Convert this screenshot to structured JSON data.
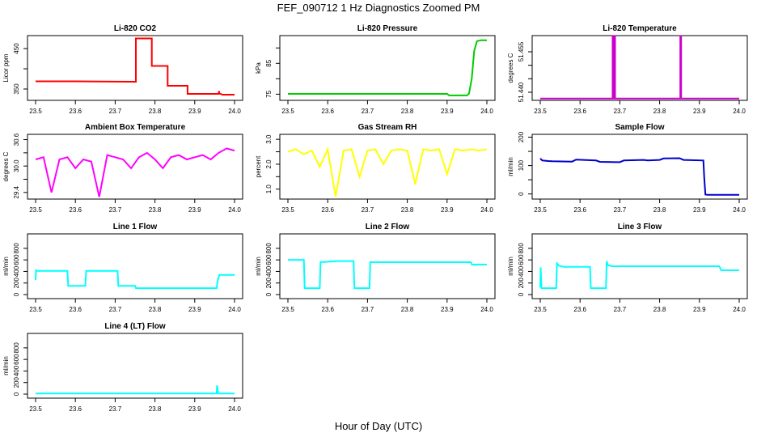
{
  "figure": {
    "title": "FEF_090712  1 Hz Diagnostics Zoomed PM",
    "xlabel": "Hour of Day (UTC)"
  },
  "chart_data": [
    {
      "type": "line",
      "title": "Li-820 CO2",
      "ylabel": "Licor ppm",
      "color": "#ff0000",
      "xlim": [
        23.5,
        24.0
      ],
      "ylim": [
        322,
        482
      ],
      "xticks": [
        "23.5",
        "23.6",
        "23.7",
        "23.8",
        "23.9",
        "24.0"
      ],
      "yticks": [
        {
          "v": 350,
          "label": "350"
        },
        {
          "v": 400,
          "label": ""
        },
        {
          "v": 450,
          "label": "450"
        }
      ],
      "x": [
        23.5,
        23.6,
        23.75,
        23.752,
        23.752,
        23.79,
        23.792,
        23.792,
        23.83,
        23.832,
        23.832,
        23.88,
        23.882,
        23.882,
        23.96,
        23.961,
        23.962,
        23.97,
        24.0
      ],
      "y": [
        369,
        369,
        368,
        368,
        475,
        475,
        475,
        407,
        407,
        407,
        358,
        358,
        358,
        338,
        338,
        345,
        339,
        336,
        336
      ]
    },
    {
      "type": "line",
      "title": "Li-820 Pressure",
      "ylabel": "kPa",
      "color": "#00cc00",
      "xlim": [
        23.5,
        24.0
      ],
      "ylim": [
        73,
        94
      ],
      "xticks": [
        "23.5",
        "23.6",
        "23.7",
        "23.8",
        "23.9",
        "24.0"
      ],
      "yticks": [
        {
          "v": 75,
          "label": "75"
        },
        {
          "v": 80,
          "label": ""
        },
        {
          "v": 85,
          "label": "85"
        },
        {
          "v": 90,
          "label": ""
        }
      ],
      "x": [
        23.5,
        23.9,
        23.905,
        23.95,
        23.955,
        23.962,
        23.968,
        23.975,
        23.985,
        24.0
      ],
      "y": [
        75.1,
        75.1,
        74.6,
        74.6,
        75.2,
        80,
        89,
        92.2,
        92.5,
        92.5
      ]
    },
    {
      "type": "line",
      "title": "Li-820 Temperature",
      "ylabel": "degrees C",
      "color": "#cc00cc",
      "xlim": [
        23.5,
        24.0
      ],
      "ylim": [
        51.437,
        51.461
      ],
      "xticks": [
        "23.5",
        "23.6",
        "23.7",
        "23.8",
        "23.9",
        "24.0"
      ],
      "yticks": [
        {
          "v": 51.44,
          "label": "51.440"
        },
        {
          "v": 51.445,
          "label": ""
        },
        {
          "v": 51.45,
          "label": ""
        },
        {
          "v": 51.455,
          "label": "51.455"
        }
      ],
      "x": [
        23.5,
        23.682,
        23.682,
        23.684,
        23.684,
        23.686,
        23.686,
        23.688,
        23.688,
        23.852,
        23.852,
        23.854,
        23.854,
        24.0
      ],
      "y": [
        51.4377,
        51.4377,
        51.4608,
        51.4608,
        51.4377,
        51.4377,
        51.4608,
        51.4608,
        51.4377,
        51.4377,
        51.4608,
        51.4608,
        51.4377,
        51.4377
      ]
    },
    {
      "type": "line",
      "title": "Ambient Box Temperature",
      "ylabel": "degrees C",
      "color": "#ff00ff",
      "xlim": [
        23.5,
        24.0
      ],
      "ylim": [
        29.25,
        30.72
      ],
      "xticks": [
        "23.5",
        "23.6",
        "23.7",
        "23.8",
        "23.9",
        "24.0"
      ],
      "yticks": [
        {
          "v": 29.4,
          "label": "29.4"
        },
        {
          "v": 29.7,
          "label": ""
        },
        {
          "v": 30.0,
          "label": "30.0"
        },
        {
          "v": 30.3,
          "label": ""
        },
        {
          "v": 30.6,
          "label": "30.6"
        }
      ],
      "x": [
        23.5,
        23.52,
        23.54,
        23.56,
        23.58,
        23.6,
        23.62,
        23.64,
        23.66,
        23.68,
        23.7,
        23.72,
        23.74,
        23.76,
        23.78,
        23.8,
        23.82,
        23.84,
        23.86,
        23.88,
        23.9,
        23.92,
        23.94,
        23.96,
        23.98,
        24.0
      ],
      "y": [
        30.15,
        30.2,
        29.4,
        30.15,
        30.2,
        29.95,
        30.15,
        30.1,
        29.3,
        30.25,
        30.2,
        30.15,
        29.95,
        30.2,
        30.3,
        30.15,
        29.95,
        30.2,
        30.25,
        30.15,
        30.2,
        30.25,
        30.15,
        30.3,
        30.4,
        30.35
      ]
    },
    {
      "type": "line",
      "title": "Gas Stream RH",
      "ylabel": "percent",
      "color": "#ffff00",
      "xlim": [
        23.5,
        24.0
      ],
      "ylim": [
        0.6,
        3.2
      ],
      "xticks": [
        "23.5",
        "23.6",
        "23.7",
        "23.8",
        "23.9",
        "24.0"
      ],
      "yticks": [
        {
          "v": 1.0,
          "label": "1.0"
        },
        {
          "v": 1.5,
          "label": ""
        },
        {
          "v": 2.0,
          "label": "2.0"
        },
        {
          "v": 2.5,
          "label": ""
        },
        {
          "v": 3.0,
          "label": "3.0"
        }
      ],
      "x": [
        23.5,
        23.52,
        23.54,
        23.56,
        23.58,
        23.6,
        23.62,
        23.64,
        23.66,
        23.68,
        23.7,
        23.72,
        23.74,
        23.76,
        23.78,
        23.8,
        23.82,
        23.84,
        23.86,
        23.88,
        23.9,
        23.92,
        23.94,
        23.96,
        23.98,
        24.0
      ],
      "y": [
        2.5,
        2.6,
        2.4,
        2.55,
        1.9,
        2.6,
        0.7,
        2.55,
        2.6,
        1.5,
        2.55,
        2.6,
        2.0,
        2.55,
        2.6,
        2.55,
        1.2,
        2.6,
        2.55,
        2.6,
        1.6,
        2.6,
        2.55,
        2.6,
        2.55,
        2.6
      ]
    },
    {
      "type": "line",
      "title": "Sample Flow",
      "ylabel": "ml/min",
      "color": "#0000cc",
      "xlim": [
        23.5,
        24.0
      ],
      "ylim": [
        -18,
        210
      ],
      "xticks": [
        "23.5",
        "23.6",
        "23.7",
        "23.8",
        "23.9",
        "24.0"
      ],
      "yticks": [
        {
          "v": 0,
          "label": "0"
        },
        {
          "v": 50,
          "label": ""
        },
        {
          "v": 100,
          "label": "100"
        },
        {
          "v": 150,
          "label": ""
        },
        {
          "v": 200,
          "label": "200"
        }
      ],
      "x": [
        23.5,
        23.505,
        23.52,
        23.53,
        23.58,
        23.59,
        23.64,
        23.65,
        23.7,
        23.71,
        23.76,
        23.77,
        23.8,
        23.81,
        23.85,
        23.86,
        23.91,
        23.912,
        23.915,
        23.92,
        24.0
      ],
      "y": [
        125,
        118,
        116,
        115,
        114,
        121,
        118,
        113,
        112,
        118,
        120,
        118,
        120,
        125,
        126,
        120,
        118,
        60,
        -2,
        -3,
        -3
      ]
    },
    {
      "type": "line",
      "title": "Line 1 Flow",
      "ylabel": "ml/min",
      "color": "#00ffff",
      "xlim": [
        23.5,
        24.0
      ],
      "ylim": [
        -70,
        1050
      ],
      "xticks": [
        "23.5",
        "23.6",
        "23.7",
        "23.8",
        "23.9",
        "24.0"
      ],
      "yticks": [
        {
          "v": 0,
          "label": "0"
        },
        {
          "v": 200,
          "label": "200"
        },
        {
          "v": 400,
          "label": "400"
        },
        {
          "v": 600,
          "label": "600"
        },
        {
          "v": 800,
          "label": "800"
        }
      ],
      "x": [
        23.5,
        23.501,
        23.503,
        23.58,
        23.582,
        23.625,
        23.627,
        23.706,
        23.708,
        23.75,
        23.752,
        23.955,
        23.958,
        23.962,
        24.0
      ],
      "y": [
        250,
        420,
        410,
        410,
        150,
        150,
        410,
        410,
        150,
        150,
        110,
        110,
        250,
        340,
        340
      ]
    },
    {
      "type": "line",
      "title": "Line 2 Flow",
      "ylabel": "ml/min",
      "color": "#00ffff",
      "xlim": [
        23.5,
        24.0
      ],
      "ylim": [
        -70,
        1050
      ],
      "xticks": [
        "23.5",
        "23.6",
        "23.7",
        "23.8",
        "23.9",
        "24.0"
      ],
      "yticks": [
        {
          "v": 0,
          "label": "0"
        },
        {
          "v": 200,
          "label": "200"
        },
        {
          "v": 400,
          "label": "400"
        },
        {
          "v": 600,
          "label": "600"
        },
        {
          "v": 800,
          "label": "800"
        }
      ],
      "x": [
        23.5,
        23.54,
        23.542,
        23.58,
        23.582,
        23.625,
        23.665,
        23.667,
        23.705,
        23.707,
        23.96,
        23.962,
        24.0
      ],
      "y": [
        600,
        600,
        110,
        110,
        560,
        580,
        580,
        110,
        110,
        560,
        560,
        520,
        520
      ]
    },
    {
      "type": "line",
      "title": "Line 3 Flow",
      "ylabel": "ml/min",
      "color": "#00ffff",
      "xlim": [
        23.5,
        24.0
      ],
      "ylim": [
        -70,
        1050
      ],
      "xticks": [
        "23.5",
        "23.6",
        "23.7",
        "23.8",
        "23.9",
        "24.0"
      ],
      "yticks": [
        {
          "v": 0,
          "label": "0"
        },
        {
          "v": 200,
          "label": "200"
        },
        {
          "v": 400,
          "label": "400"
        },
        {
          "v": 600,
          "label": "600"
        },
        {
          "v": 800,
          "label": "800"
        }
      ],
      "x": [
        23.5,
        23.501,
        23.503,
        23.54,
        23.542,
        23.547,
        23.56,
        23.625,
        23.627,
        23.665,
        23.667,
        23.67,
        23.68,
        23.95,
        23.955,
        24.0
      ],
      "y": [
        120,
        470,
        110,
        110,
        540,
        500,
        480,
        480,
        110,
        110,
        580,
        510,
        490,
        490,
        420,
        420
      ]
    },
    {
      "type": "line",
      "title": "Line 4 (LT) Flow",
      "ylabel": "ml/min",
      "color": "#00ffff",
      "xlim": [
        23.5,
        24.0
      ],
      "ylim": [
        -70,
        1050
      ],
      "xticks": [
        "23.5",
        "23.6",
        "23.7",
        "23.8",
        "23.9",
        "24.0"
      ],
      "yticks": [
        {
          "v": 0,
          "label": "0"
        },
        {
          "v": 200,
          "label": "200"
        },
        {
          "v": 400,
          "label": "400"
        },
        {
          "v": 600,
          "label": "600"
        },
        {
          "v": 800,
          "label": "800"
        }
      ],
      "x": [
        23.5,
        23.955,
        23.956,
        23.958,
        23.96,
        24.0
      ],
      "y": [
        10,
        10,
        150,
        60,
        10,
        10
      ]
    }
  ]
}
